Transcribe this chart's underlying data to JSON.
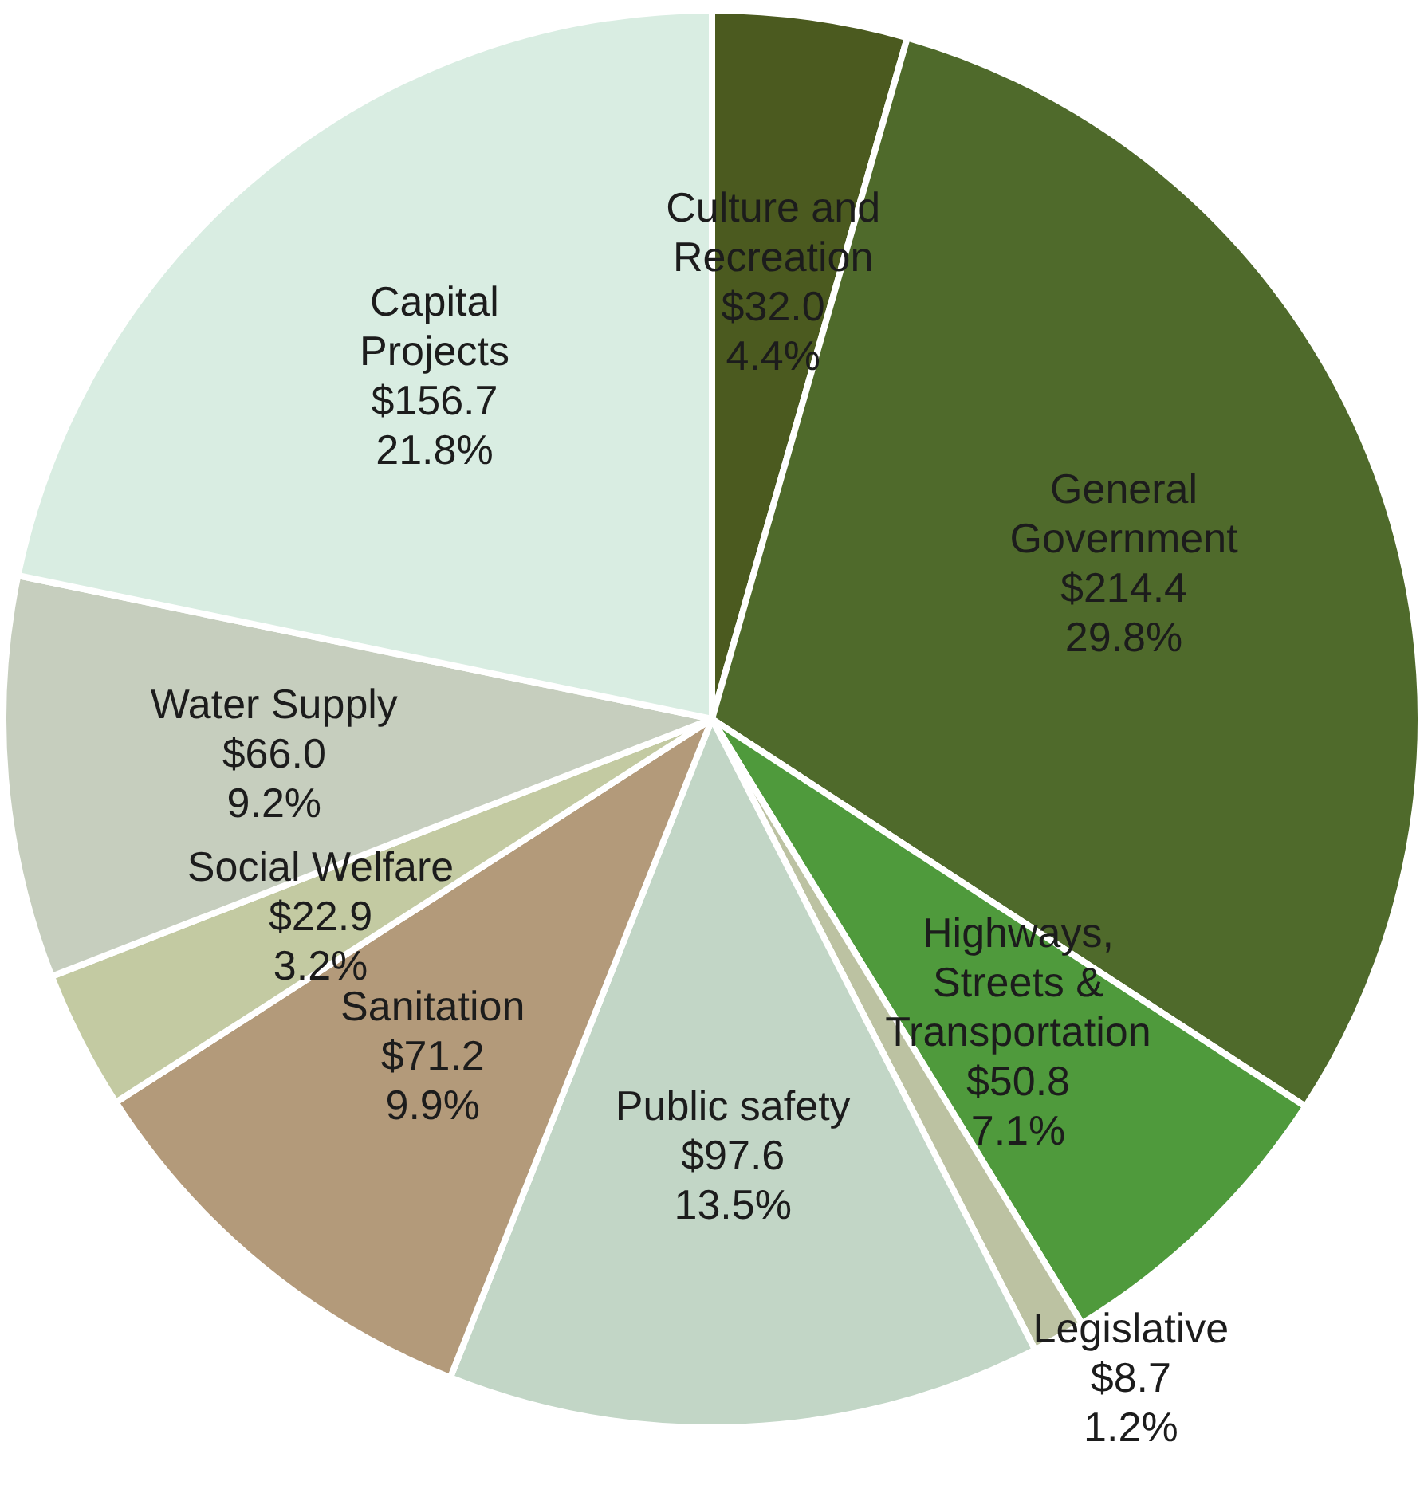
{
  "chart_data": {
    "type": "pie",
    "categories": [
      "Culture and Recreation",
      "General Government",
      "Highways, Streets & Transportation",
      "Legislative",
      "Public safety",
      "Sanitation",
      "Social Welfare",
      "Water Supply",
      "Capital Projects"
    ],
    "values": [
      32.0,
      214.4,
      50.8,
      8.7,
      97.6,
      71.2,
      22.9,
      66.0,
      156.7
    ],
    "colors": [
      "#4b5a1f",
      "#4f6a2b",
      "#4f9a3c",
      "#bcc2a2",
      "#c2d6c6",
      "#b39a7a",
      "#c3caa2",
      "#c6cebe",
      "#d9ede2"
    ],
    "value_labels": [
      "$32.0\n4.4%",
      "$214.4\n29.8%",
      "$50.8\n7.1%",
      "$8.7\n1.2%",
      "$97.6\n13.5%",
      "$71.2\n9.9%",
      "$22.9\n3.2%",
      "$66.0\n9.2%",
      "$156.7\n21.8%"
    ],
    "legend": false
  }
}
